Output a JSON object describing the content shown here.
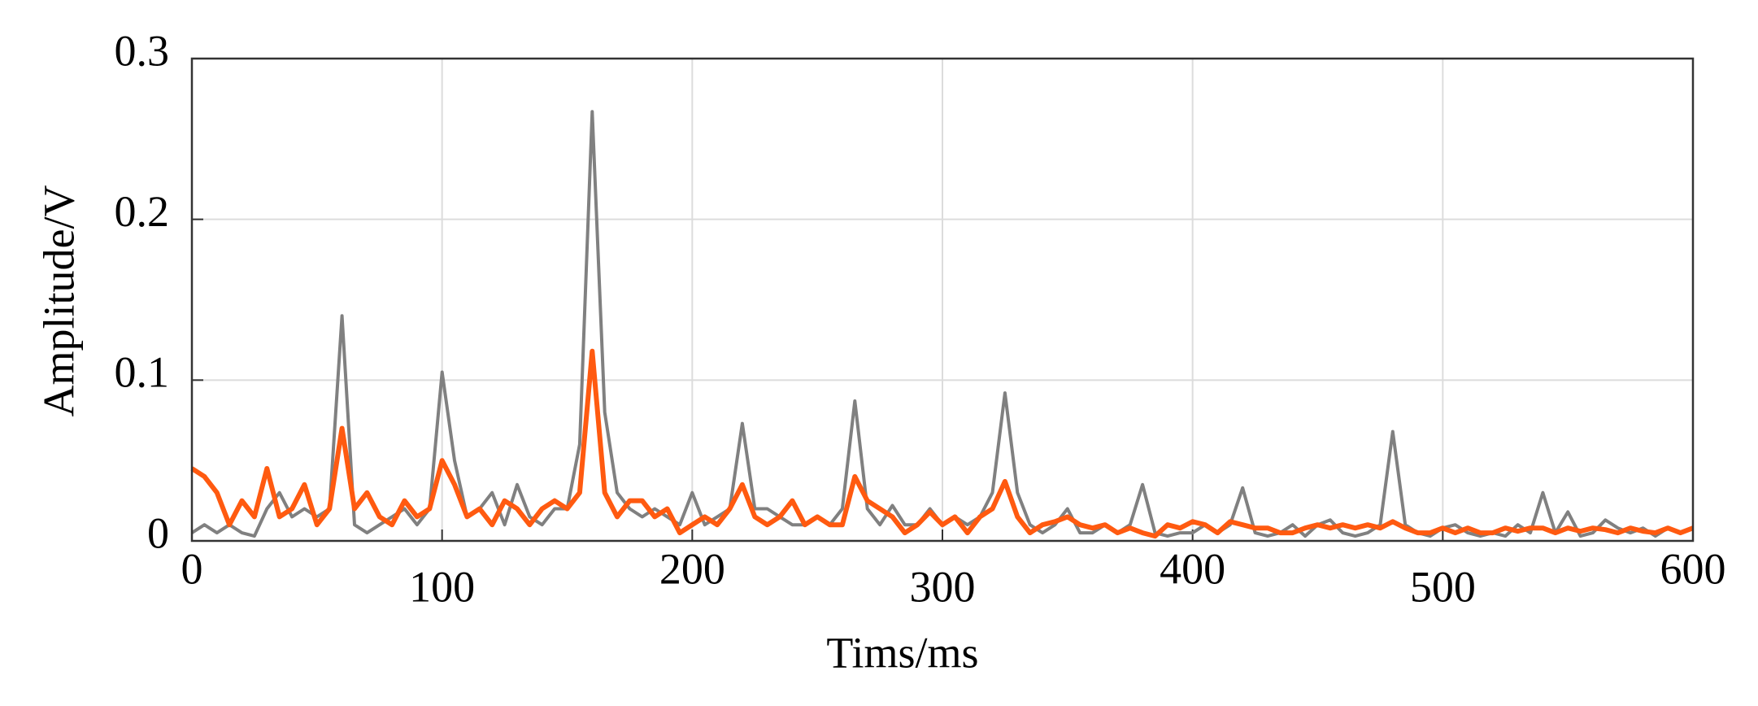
{
  "chart_data": {
    "type": "line",
    "xlabel": "Tims/ms",
    "ylabel": "Amplitude/V",
    "x": [
      0,
      5,
      10,
      15,
      20,
      25,
      30,
      35,
      40,
      45,
      50,
      55,
      60,
      65,
      70,
      75,
      80,
      85,
      90,
      95,
      100,
      105,
      110,
      115,
      120,
      125,
      130,
      135,
      140,
      145,
      150,
      155,
      160,
      165,
      170,
      175,
      180,
      185,
      190,
      195,
      200,
      205,
      210,
      215,
      220,
      225,
      230,
      235,
      240,
      245,
      250,
      255,
      260,
      265,
      270,
      275,
      280,
      285,
      290,
      295,
      300,
      305,
      310,
      315,
      320,
      325,
      330,
      335,
      340,
      345,
      350,
      355,
      360,
      365,
      370,
      375,
      380,
      385,
      390,
      395,
      400,
      405,
      410,
      415,
      420,
      425,
      430,
      435,
      440,
      445,
      450,
      455,
      460,
      465,
      470,
      475,
      480,
      485,
      490,
      495,
      500,
      505,
      510,
      515,
      520,
      525,
      530,
      535,
      540,
      545,
      550,
      555,
      560,
      565,
      570,
      575,
      580,
      585,
      590,
      595,
      600
    ],
    "series": [
      {
        "color": "#808080",
        "values": [
          0.005,
          0.01,
          0.005,
          0.01,
          0.005,
          0.003,
          0.02,
          0.03,
          0.015,
          0.02,
          0.015,
          0.02,
          0.14,
          0.01,
          0.005,
          0.01,
          0.015,
          0.02,
          0.01,
          0.02,
          0.105,
          0.05,
          0.015,
          0.02,
          0.03,
          0.01,
          0.035,
          0.015,
          0.01,
          0.02,
          0.02,
          0.06,
          0.267,
          0.08,
          0.03,
          0.02,
          0.015,
          0.02,
          0.015,
          0.01,
          0.03,
          0.01,
          0.015,
          0.02,
          0.073,
          0.02,
          0.02,
          0.015,
          0.01,
          0.01,
          0.015,
          0.01,
          0.02,
          0.087,
          0.02,
          0.01,
          0.022,
          0.01,
          0.01,
          0.02,
          0.01,
          0.015,
          0.01,
          0.015,
          0.03,
          0.092,
          0.03,
          0.01,
          0.005,
          0.01,
          0.02,
          0.005,
          0.005,
          0.01,
          0.005,
          0.01,
          0.035,
          0.005,
          0.003,
          0.005,
          0.005,
          0.01,
          0.005,
          0.01,
          0.033,
          0.005,
          0.003,
          0.005,
          0.01,
          0.003,
          0.01,
          0.013,
          0.005,
          0.003,
          0.005,
          0.01,
          0.068,
          0.01,
          0.005,
          0.003,
          0.008,
          0.01,
          0.005,
          0.003,
          0.005,
          0.003,
          0.01,
          0.005,
          0.03,
          0.005,
          0.018,
          0.003,
          0.005,
          0.013,
          0.008,
          0.005,
          0.008,
          0.003,
          0.008,
          0.005,
          0.008
        ]
      },
      {
        "color": "#ff5a10",
        "values": [
          0.045,
          0.04,
          0.03,
          0.01,
          0.025,
          0.015,
          0.045,
          0.015,
          0.02,
          0.035,
          0.01,
          0.02,
          0.07,
          0.02,
          0.03,
          0.015,
          0.01,
          0.025,
          0.015,
          0.02,
          0.05,
          0.035,
          0.015,
          0.02,
          0.01,
          0.025,
          0.02,
          0.01,
          0.02,
          0.025,
          0.02,
          0.03,
          0.118,
          0.03,
          0.015,
          0.025,
          0.025,
          0.015,
          0.02,
          0.005,
          0.01,
          0.015,
          0.01,
          0.02,
          0.035,
          0.015,
          0.01,
          0.015,
          0.025,
          0.01,
          0.015,
          0.01,
          0.01,
          0.04,
          0.025,
          0.02,
          0.015,
          0.005,
          0.01,
          0.018,
          0.01,
          0.015,
          0.005,
          0.015,
          0.02,
          0.037,
          0.015,
          0.005,
          0.01,
          0.012,
          0.015,
          0.01,
          0.008,
          0.01,
          0.005,
          0.008,
          0.005,
          0.003,
          0.01,
          0.008,
          0.012,
          0.01,
          0.005,
          0.012,
          0.01,
          0.008,
          0.008,
          0.005,
          0.005,
          0.008,
          0.01,
          0.008,
          0.01,
          0.008,
          0.01,
          0.008,
          0.012,
          0.008,
          0.005,
          0.005,
          0.008,
          0.005,
          0.008,
          0.005,
          0.005,
          0.008,
          0.006,
          0.008,
          0.008,
          0.005,
          0.008,
          0.006,
          0.008,
          0.007,
          0.005,
          0.008,
          0.006,
          0.005,
          0.008,
          0.005,
          0.008
        ]
      }
    ],
    "xlim": [
      0,
      600
    ],
    "xticks": [
      0,
      100,
      200,
      300,
      400,
      500,
      600
    ],
    "ylim": [
      0,
      0.3
    ],
    "yticks": [
      0,
      0.1,
      0.2,
      0.3
    ],
    "grid": true
  }
}
